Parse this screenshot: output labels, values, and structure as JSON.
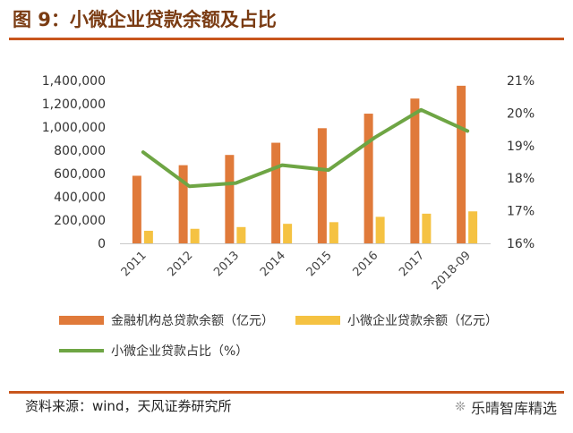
{
  "title": "图 9：小微企业贷款余额及占比",
  "source": "资料来源：wind，天风证券研究所",
  "brand": {
    "icon": "wechat-icon",
    "name": "乐晴智库精选"
  },
  "colors": {
    "bar_total": "#e07a3a",
    "bar_small": "#f5c242",
    "line": "#6ea544",
    "accent": "#c8561d",
    "title": "#7a3b12"
  },
  "chart_data": {
    "type": "bar",
    "categories": [
      "2011",
      "2012",
      "2013",
      "2014",
      "2015",
      "2016",
      "2017",
      "2018-09"
    ],
    "series": [
      {
        "name": "金融机构总贷款余额（亿元）",
        "axis": "left",
        "values": [
          581000,
          672000,
          760000,
          865000,
          990000,
          1115000,
          1245000,
          1355000
        ]
      },
      {
        "name": "小微企业贷款余额（亿元）",
        "axis": "left",
        "values": [
          108000,
          125000,
          140000,
          168000,
          182000,
          228000,
          255000,
          275000
        ]
      },
      {
        "name": "小微企业贷款占比（%）",
        "axis": "right",
        "type": "line",
        "values": [
          18.8,
          17.75,
          17.85,
          18.4,
          18.25,
          19.25,
          20.1,
          19.45
        ]
      }
    ],
    "y_left": {
      "min": 0,
      "max": 1400000,
      "ticks": [
        "0",
        "200,000",
        "400,000",
        "600,000",
        "800,000",
        "1,000,000",
        "1,200,000",
        "1,400,000"
      ]
    },
    "y_right": {
      "min": 16,
      "max": 21,
      "ticks": [
        "16%",
        "17%",
        "18%",
        "19%",
        "20%",
        "21%"
      ]
    },
    "grid": false,
    "legend_position": "bottom"
  }
}
